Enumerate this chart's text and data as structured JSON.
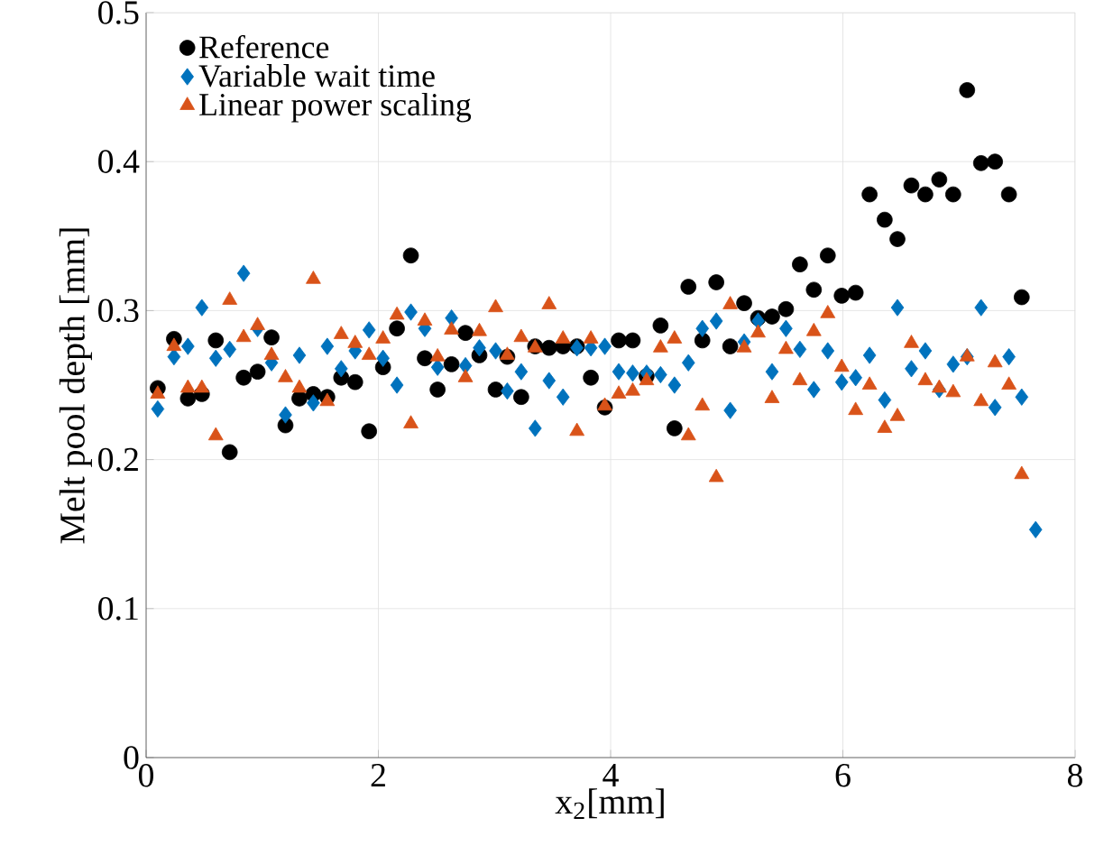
{
  "chart_data": {
    "type": "scatter",
    "xlabel": "x$_{2}$[mm]",
    "ylabel": "Melt pool depth [mm]",
    "xlim": [
      0,
      8
    ],
    "ylim": [
      0,
      0.5
    ],
    "xticks": [
      0,
      2,
      4,
      6,
      8
    ],
    "yticks": [
      0,
      0.1,
      0.2,
      0.3,
      0.4,
      0.5
    ],
    "grid": true,
    "legend": "top left",
    "series": [
      {
        "name": "Reference",
        "color": "#000000",
        "marker": "circle",
        "x": [
          0.1,
          0.24,
          0.36,
          0.48,
          0.6,
          0.72,
          0.84,
          0.96,
          1.08,
          1.2,
          1.32,
          1.44,
          1.56,
          1.68,
          1.8,
          1.92,
          2.04,
          2.16,
          2.28,
          2.4,
          2.51,
          2.63,
          2.75,
          2.87,
          3.01,
          3.11,
          3.23,
          3.35,
          3.47,
          3.59,
          3.71,
          3.83,
          3.95,
          4.07,
          4.19,
          4.31,
          4.43,
          4.55,
          4.67,
          4.79,
          4.91,
          5.03,
          5.15,
          5.27,
          5.39,
          5.51,
          5.63,
          5.75,
          5.87,
          5.99,
          6.11,
          6.23,
          6.36,
          6.47,
          6.59,
          6.71,
          6.83,
          6.95,
          7.07,
          7.19,
          7.31,
          7.43,
          7.54
        ],
        "values": [
          0.248,
          0.281,
          0.241,
          0.244,
          0.28,
          0.205,
          0.255,
          0.259,
          0.282,
          0.223,
          0.241,
          0.244,
          0.242,
          0.255,
          0.252,
          0.219,
          0.262,
          0.288,
          0.337,
          0.268,
          0.247,
          0.264,
          0.285,
          0.27,
          0.247,
          0.269,
          0.242,
          0.276,
          0.275,
          0.276,
          0.276,
          0.255,
          0.235,
          0.28,
          0.28,
          0.256,
          0.29,
          0.221,
          0.316,
          0.28,
          0.319,
          0.276,
          0.305,
          0.295,
          0.296,
          0.301,
          0.331,
          0.314,
          0.337,
          0.31,
          0.312,
          0.378,
          0.361,
          0.348,
          0.384,
          0.378,
          0.388,
          0.378,
          0.448,
          0.399,
          0.4,
          0.378,
          0.309
        ]
      },
      {
        "name": "Variable wait time",
        "color": "#0072bd",
        "marker": "diamond",
        "x": [
          0.1,
          0.24,
          0.36,
          0.48,
          0.6,
          0.72,
          0.84,
          0.96,
          1.08,
          1.2,
          1.32,
          1.44,
          1.56,
          1.68,
          1.8,
          1.92,
          2.04,
          2.16,
          2.28,
          2.4,
          2.51,
          2.63,
          2.75,
          2.87,
          3.01,
          3.11,
          3.23,
          3.35,
          3.47,
          3.59,
          3.71,
          3.83,
          3.95,
          4.07,
          4.19,
          4.31,
          4.43,
          4.55,
          4.67,
          4.79,
          4.91,
          5.03,
          5.15,
          5.27,
          5.39,
          5.51,
          5.63,
          5.75,
          5.87,
          5.99,
          6.11,
          6.23,
          6.36,
          6.47,
          6.59,
          6.71,
          6.83,
          6.95,
          7.07,
          7.19,
          7.31,
          7.43,
          7.54,
          7.66
        ],
        "values": [
          0.234,
          0.269,
          0.276,
          0.302,
          0.268,
          0.274,
          0.325,
          0.288,
          0.265,
          0.23,
          0.27,
          0.238,
          0.276,
          0.261,
          0.273,
          0.287,
          0.268,
          0.25,
          0.299,
          0.288,
          0.262,
          0.295,
          0.263,
          0.275,
          0.273,
          0.246,
          0.259,
          0.221,
          0.253,
          0.242,
          0.275,
          0.275,
          0.276,
          0.259,
          0.258,
          0.258,
          0.257,
          0.25,
          0.265,
          0.288,
          0.293,
          0.233,
          0.279,
          0.293,
          0.259,
          0.288,
          0.274,
          0.247,
          0.273,
          0.252,
          0.255,
          0.27,
          0.24,
          0.302,
          0.261,
          0.273,
          0.247,
          0.264,
          0.269,
          0.302,
          0.235,
          0.269,
          0.242,
          0.153
        ]
      },
      {
        "name": "Linear power scaling",
        "color": "#d95319",
        "marker": "triangle",
        "x": [
          0.1,
          0.24,
          0.36,
          0.48,
          0.6,
          0.72,
          0.84,
          0.96,
          1.08,
          1.2,
          1.32,
          1.44,
          1.56,
          1.68,
          1.8,
          1.92,
          2.04,
          2.16,
          2.28,
          2.4,
          2.51,
          2.63,
          2.75,
          2.87,
          3.01,
          3.11,
          3.23,
          3.35,
          3.47,
          3.59,
          3.71,
          3.83,
          3.95,
          4.07,
          4.19,
          4.31,
          4.43,
          4.55,
          4.67,
          4.79,
          4.91,
          5.03,
          5.15,
          5.27,
          5.39,
          5.51,
          5.63,
          5.75,
          5.87,
          5.99,
          6.11,
          6.23,
          6.36,
          6.47,
          6.59,
          6.71,
          6.83,
          6.95,
          7.07,
          7.19,
          7.31,
          7.43,
          7.54
        ],
        "values": [
          0.244,
          0.276,
          0.248,
          0.248,
          0.216,
          0.307,
          0.282,
          0.29,
          0.27,
          0.255,
          0.248,
          0.321,
          0.239,
          0.284,
          0.278,
          0.27,
          0.281,
          0.297,
          0.224,
          0.293,
          0.269,
          0.287,
          0.255,
          0.286,
          0.302,
          0.27,
          0.282,
          0.275,
          0.304,
          0.281,
          0.219,
          0.281,
          0.236,
          0.244,
          0.246,
          0.253,
          0.275,
          0.281,
          0.216,
          0.236,
          0.188,
          0.304,
          0.275,
          0.285,
          0.241,
          0.274,
          0.253,
          0.286,
          0.298,
          0.262,
          0.233,
          0.25,
          0.221,
          0.229,
          0.278,
          0.253,
          0.248,
          0.245,
          0.269,
          0.239,
          0.265,
          0.25,
          0.19
        ]
      }
    ]
  }
}
